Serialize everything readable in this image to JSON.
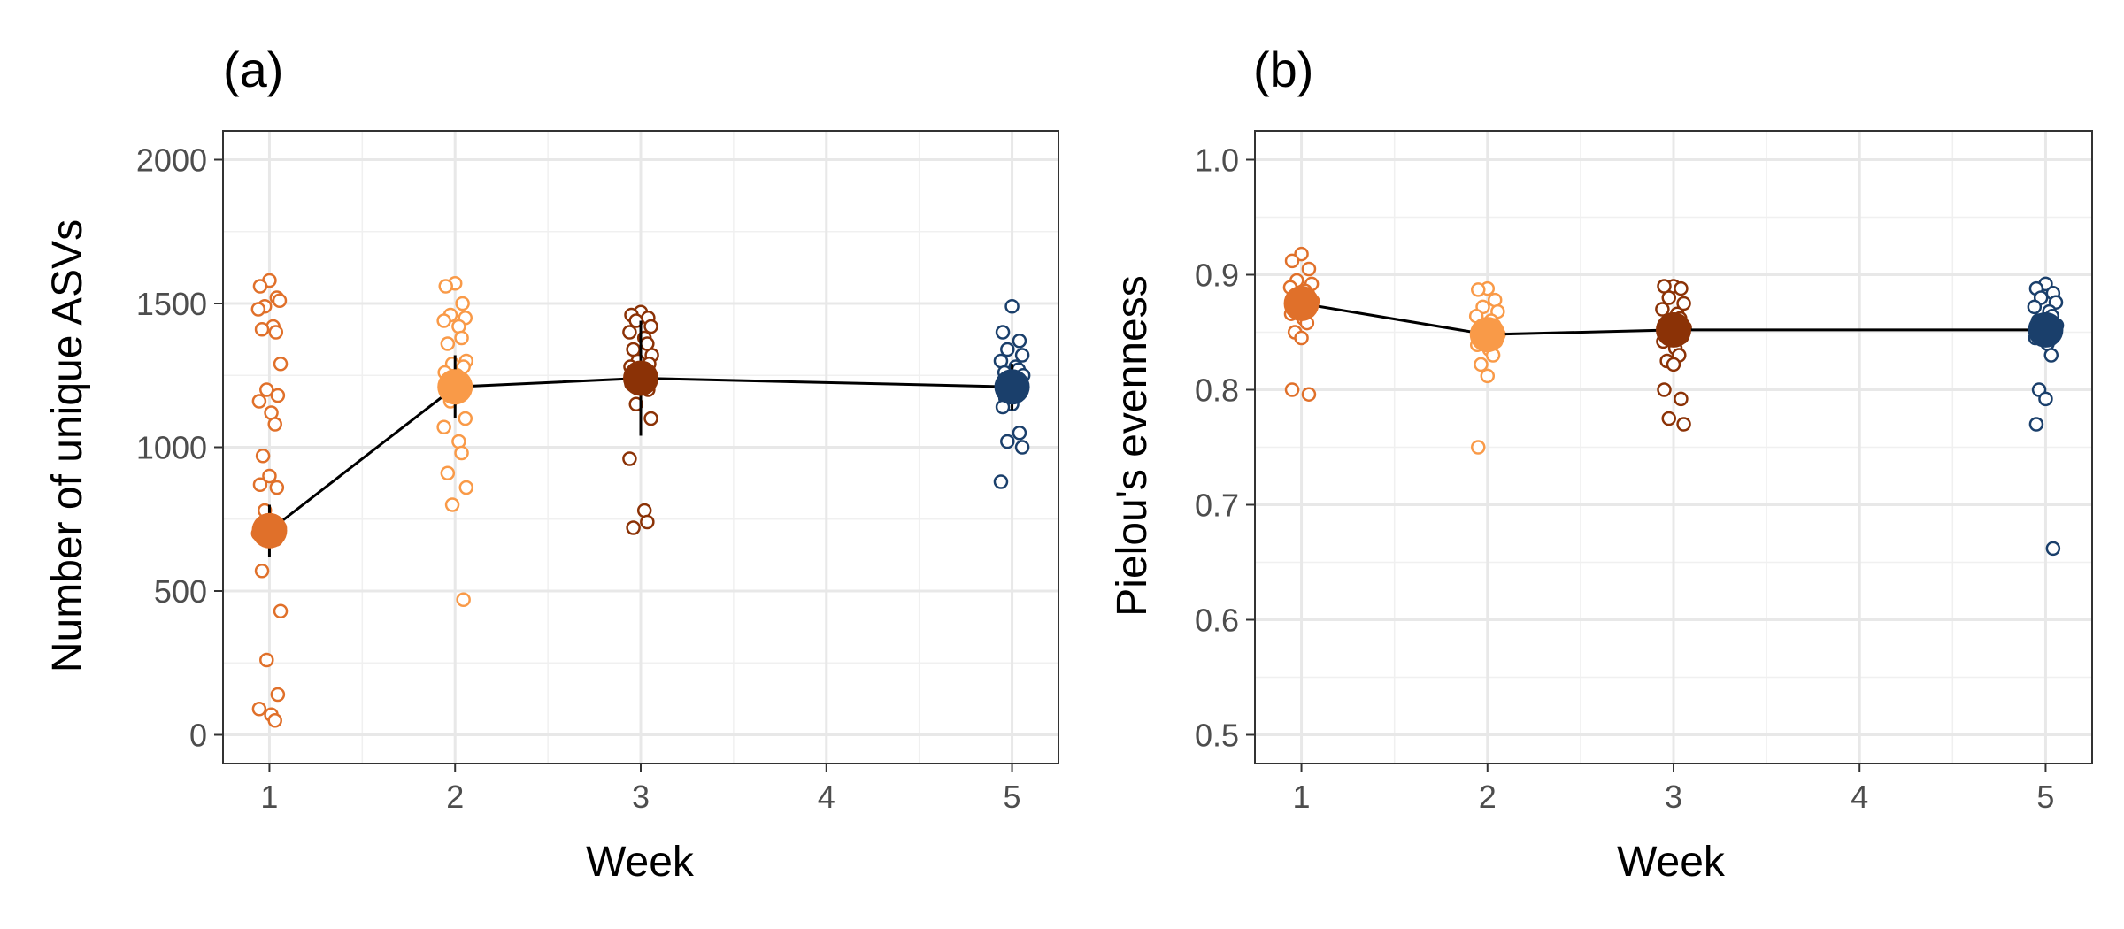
{
  "chart_data": [
    {
      "type": "scatter",
      "panel_label": "(a)",
      "xlabel": "Week",
      "ylabel": "Number of unique ASVs",
      "xlim": [
        0.75,
        5.25
      ],
      "ylim": [
        -100,
        2100
      ],
      "x_ticks": [
        1,
        2,
        3,
        4,
        5
      ],
      "y_ticks": [
        0,
        500,
        1000,
        1500,
        2000
      ],
      "grid": true,
      "legend": "none",
      "series": [
        {
          "color": "#e0702a",
          "week": 1,
          "mean": 710,
          "error_low": 620,
          "error_high": 800,
          "points": [
            1580,
            1560,
            1520,
            1490,
            1510,
            1480,
            1420,
            1400,
            1410,
            1290,
            1200,
            1180,
            1160,
            1120,
            1080,
            970,
            900,
            870,
            860,
            780,
            720,
            700,
            690,
            680,
            570,
            430,
            260,
            140,
            90,
            70,
            50
          ]
        },
        {
          "color": "#f99a48",
          "week": 2,
          "mean": 1210,
          "error_low": 1100,
          "error_high": 1320,
          "points": [
            1570,
            1560,
            1500,
            1460,
            1450,
            1440,
            1420,
            1380,
            1360,
            1300,
            1290,
            1280,
            1260,
            1250,
            1240,
            1230,
            1220,
            1200,
            1190,
            1160,
            1100,
            1070,
            1020,
            980,
            910,
            860,
            800,
            470
          ]
        },
        {
          "color": "#8b3206",
          "week": 3,
          "mean": 1240,
          "error_low": 1040,
          "error_high": 1440,
          "points": [
            1470,
            1460,
            1450,
            1440,
            1420,
            1400,
            1380,
            1360,
            1340,
            1320,
            1300,
            1290,
            1280,
            1270,
            1250,
            1240,
            1230,
            1220,
            1200,
            1150,
            1100,
            960,
            780,
            740,
            720
          ]
        },
        {
          "color": "#1a3f6b",
          "week": 5,
          "mean": 1210,
          "error_low": 1130,
          "error_high": 1290,
          "points": [
            1490,
            1400,
            1370,
            1340,
            1320,
            1300,
            1280,
            1270,
            1260,
            1250,
            1240,
            1230,
            1210,
            1200,
            1180,
            1170,
            1150,
            1140,
            1050,
            1020,
            1000,
            880
          ]
        }
      ]
    },
    {
      "type": "scatter",
      "panel_label": "(b)",
      "xlabel": "Week",
      "ylabel": "Pielou's evenness",
      "xlim": [
        0.75,
        5.25
      ],
      "ylim": [
        0.475,
        1.025
      ],
      "x_ticks": [
        1,
        2,
        3,
        4,
        5
      ],
      "y_ticks": [
        0.5,
        0.6,
        0.7,
        0.8,
        0.9,
        1.0
      ],
      "y_tick_labels": [
        "0.5",
        "0.6",
        "0.7",
        "0.8",
        "0.9",
        "1.0"
      ],
      "grid": true,
      "legend": "none",
      "series": [
        {
          "color": "#e0702a",
          "week": 1,
          "mean": 0.875,
          "error_low": 0.862,
          "error_high": 0.888,
          "points": [
            0.918,
            0.912,
            0.905,
            0.895,
            0.892,
            0.889,
            0.886,
            0.883,
            0.88,
            0.877,
            0.873,
            0.87,
            0.866,
            0.862,
            0.858,
            0.85,
            0.845,
            0.8,
            0.796
          ]
        },
        {
          "color": "#f99a48",
          "week": 2,
          "mean": 0.848,
          "error_low": 0.838,
          "error_high": 0.858,
          "points": [
            0.888,
            0.887,
            0.878,
            0.872,
            0.868,
            0.864,
            0.86,
            0.856,
            0.852,
            0.848,
            0.845,
            0.842,
            0.839,
            0.835,
            0.83,
            0.822,
            0.812,
            0.75
          ]
        },
        {
          "color": "#8b3206",
          "week": 3,
          "mean": 0.852,
          "error_low": 0.84,
          "error_high": 0.864,
          "points": [
            0.89,
            0.89,
            0.888,
            0.88,
            0.875,
            0.87,
            0.866,
            0.862,
            0.858,
            0.854,
            0.85,
            0.846,
            0.842,
            0.836,
            0.83,
            0.825,
            0.822,
            0.8,
            0.792,
            0.775,
            0.77
          ]
        },
        {
          "color": "#1a3f6b",
          "week": 5,
          "mean": 0.852,
          "error_low": 0.842,
          "error_high": 0.862,
          "points": [
            0.892,
            0.888,
            0.884,
            0.88,
            0.876,
            0.872,
            0.868,
            0.864,
            0.86,
            0.856,
            0.852,
            0.848,
            0.845,
            0.84,
            0.83,
            0.8,
            0.792,
            0.77,
            0.662
          ]
        }
      ]
    }
  ]
}
